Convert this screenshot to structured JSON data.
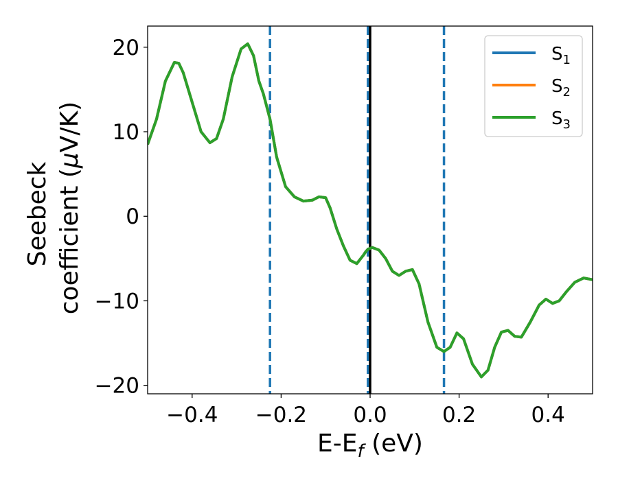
{
  "chart_data": {
    "type": "line",
    "title": "",
    "xlabel": "E-E",
    "xlabel_sub": "f",
    "xlabel_unit": " (eV)",
    "ylabel_line1": "Seebeck",
    "ylabel_line2": "coefficient  (",
    "ylabel_mu": "μ",
    "ylabel_tail": "V/K)",
    "xlim": [
      -0.5,
      0.5
    ],
    "ylim": [
      -21,
      22.5
    ],
    "xticks": [
      -0.4,
      -0.2,
      0.0,
      0.2,
      0.4
    ],
    "xtick_labels": [
      "−0.4",
      "−0.2",
      "0.0",
      "0.2",
      "0.4"
    ],
    "yticks": [
      -20,
      -10,
      0,
      10,
      20
    ],
    "ytick_labels": [
      "−20",
      "−10",
      "0",
      "10",
      "20"
    ],
    "grid": false,
    "legend_position": "top-right",
    "vlines": [
      {
        "x": -0.225,
        "style": "dashed",
        "color": "#1f77b4"
      },
      {
        "x": -0.005,
        "style": "dashed",
        "color": "#1f77b4"
      },
      {
        "x": 0.0,
        "style": "solid",
        "color": "#000000"
      },
      {
        "x": 0.166,
        "style": "dashed",
        "color": "#1f77b4"
      }
    ],
    "x": [
      -0.5,
      -0.48,
      -0.46,
      -0.44,
      -0.43,
      -0.42,
      -0.4,
      -0.38,
      -0.36,
      -0.345,
      -0.33,
      -0.31,
      -0.29,
      -0.275,
      -0.262,
      -0.25,
      -0.24,
      -0.225,
      -0.21,
      -0.19,
      -0.17,
      -0.15,
      -0.13,
      -0.115,
      -0.1,
      -0.09,
      -0.075,
      -0.06,
      -0.045,
      -0.03,
      -0.015,
      -0.01,
      -0.005,
      0.005,
      0.02,
      0.035,
      0.05,
      0.065,
      0.08,
      0.095,
      0.11,
      0.13,
      0.15,
      0.166,
      0.18,
      0.195,
      0.21,
      0.23,
      0.25,
      0.265,
      0.28,
      0.295,
      0.31,
      0.325,
      0.34,
      0.36,
      0.38,
      0.395,
      0.41,
      0.425,
      0.44,
      0.46,
      0.48,
      0.5
    ],
    "series": [
      {
        "name": "S₁",
        "color": "#1f77b4",
        "values": [
          8.5,
          11.5,
          16.0,
          18.2,
          18.1,
          17.0,
          13.5,
          10.0,
          8.7,
          9.2,
          11.5,
          16.5,
          19.8,
          20.4,
          19.0,
          16.0,
          14.5,
          11.5,
          7.0,
          3.5,
          2.3,
          1.8,
          1.9,
          2.3,
          2.2,
          1.0,
          -1.5,
          -3.5,
          -5.2,
          -5.6,
          -4.6,
          -4.2,
          -3.9,
          -3.7,
          -4.0,
          -5.0,
          -6.5,
          -7.0,
          -6.5,
          -6.3,
          -8.0,
          -12.5,
          -15.5,
          -16.0,
          -15.5,
          -13.8,
          -14.5,
          -17.5,
          -19.0,
          -18.2,
          -15.5,
          -13.7,
          -13.5,
          -14.2,
          -14.3,
          -12.5,
          -10.5,
          -9.8,
          -10.3,
          -10.0,
          -9.0,
          -7.8,
          -7.3,
          -7.5
        ]
      },
      {
        "name": "S₂",
        "color": "#ff7f0e",
        "values": [
          8.5,
          11.5,
          16.0,
          18.2,
          18.1,
          17.0,
          13.5,
          10.0,
          8.7,
          9.2,
          11.5,
          16.5,
          19.8,
          20.4,
          19.0,
          16.0,
          14.5,
          11.5,
          7.0,
          3.5,
          2.3,
          1.8,
          1.9,
          2.3,
          2.2,
          1.0,
          -1.5,
          -3.5,
          -5.2,
          -5.6,
          -4.6,
          -4.2,
          -3.9,
          -3.7,
          -4.0,
          -5.0,
          -6.5,
          -7.0,
          -6.5,
          -6.3,
          -8.0,
          -12.5,
          -15.5,
          -16.0,
          -15.5,
          -13.8,
          -14.5,
          -17.5,
          -19.0,
          -18.2,
          -15.5,
          -13.7,
          -13.5,
          -14.2,
          -14.3,
          -12.5,
          -10.5,
          -9.8,
          -10.3,
          -10.0,
          -9.0,
          -7.8,
          -7.3,
          -7.5
        ]
      },
      {
        "name": "S₃",
        "color": "#2ca02c",
        "values": [
          8.5,
          11.5,
          16.0,
          18.2,
          18.1,
          17.0,
          13.5,
          10.0,
          8.7,
          9.2,
          11.5,
          16.5,
          19.8,
          20.4,
          19.0,
          16.0,
          14.5,
          11.5,
          7.0,
          3.5,
          2.3,
          1.8,
          1.9,
          2.3,
          2.2,
          1.0,
          -1.5,
          -3.5,
          -5.2,
          -5.6,
          -4.6,
          -4.2,
          -3.9,
          -3.7,
          -4.0,
          -5.0,
          -6.5,
          -7.0,
          -6.5,
          -6.3,
          -8.0,
          -12.5,
          -15.5,
          -16.0,
          -15.5,
          -13.8,
          -14.5,
          -17.5,
          -19.0,
          -18.2,
          -15.5,
          -13.7,
          -13.5,
          -14.2,
          -14.3,
          -12.5,
          -10.5,
          -9.8,
          -10.3,
          -10.0,
          -9.0,
          -7.8,
          -7.3,
          -7.5
        ]
      }
    ],
    "legend": [
      {
        "base": "S",
        "sub": "1",
        "color": "#1f77b4"
      },
      {
        "base": "S",
        "sub": "2",
        "color": "#ff7f0e"
      },
      {
        "base": "S",
        "sub": "3",
        "color": "#2ca02c"
      }
    ]
  }
}
